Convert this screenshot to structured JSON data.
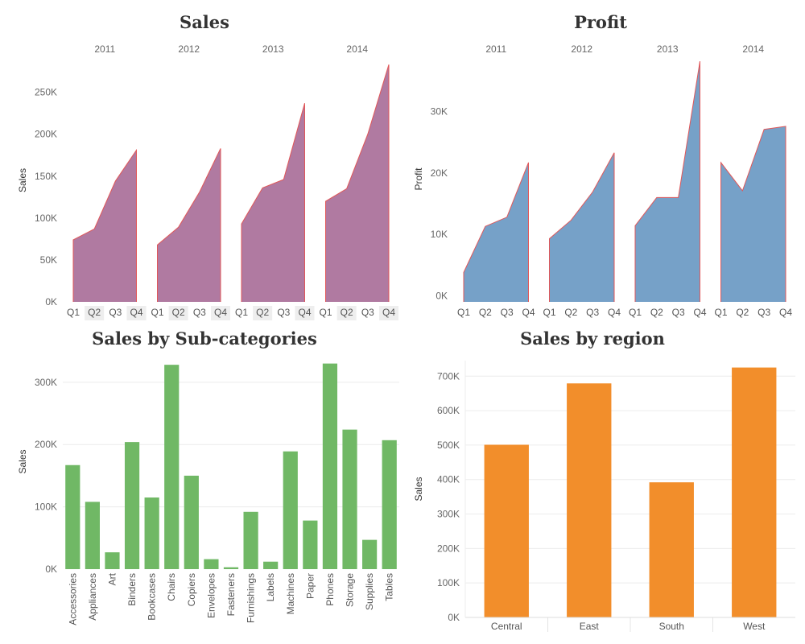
{
  "chart_data": [
    {
      "type": "area",
      "title": "Sales",
      "ylabel": "Sales",
      "years": [
        "2011",
        "2012",
        "2013",
        "2014"
      ],
      "quarters": [
        "Q1",
        "Q2",
        "Q3",
        "Q4"
      ],
      "values": [
        [
          74000,
          87000,
          144000,
          181000
        ],
        [
          68000,
          89000,
          131000,
          183000
        ],
        [
          93000,
          136000,
          146000,
          237000
        ],
        [
          120000,
          135000,
          200000,
          283000
        ]
      ],
      "ylim": [
        0,
        290000
      ],
      "yticks": [
        0,
        50000,
        100000,
        150000,
        200000,
        250000
      ],
      "ytick_labels": [
        "0K",
        "50K",
        "100K",
        "150K",
        "200K",
        "250K"
      ],
      "color": "#b07aa1",
      "stroke": "#e15759"
    },
    {
      "type": "area",
      "title": "Profit",
      "ylabel": "Profit",
      "years": [
        "2011",
        "2012",
        "2013",
        "2014"
      ],
      "quarters": [
        "Q1",
        "Q2",
        "Q3",
        "Q4"
      ],
      "values": [
        [
          3800,
          11300,
          12800,
          21700
        ],
        [
          9300,
          12300,
          16900,
          23300
        ],
        [
          11400,
          16000,
          16000,
          38200
        ],
        [
          21700,
          17100,
          27100,
          27600
        ]
      ],
      "ylim": [
        -1000,
        39000
      ],
      "yticks": [
        0,
        10000,
        20000,
        30000
      ],
      "ytick_labels": [
        "0K",
        "10K",
        "20K",
        "30K"
      ],
      "color": "#76a1c8",
      "stroke": "#e15759"
    },
    {
      "type": "bar",
      "title": "Sales by Sub-categories",
      "ylabel": "Sales",
      "categories": [
        "Accessories",
        "Appliances",
        "Art",
        "Binders",
        "Bookcases",
        "Chairs",
        "Copiers",
        "Envelopes",
        "Fasteners",
        "Furnishings",
        "Labels",
        "Machines",
        "Paper",
        "Phones",
        "Storage",
        "Supplies",
        "Tables"
      ],
      "values": [
        167000,
        108000,
        27000,
        204000,
        115000,
        328000,
        150000,
        16000,
        3000,
        92000,
        12000,
        189000,
        78000,
        330000,
        224000,
        47000,
        207000
      ],
      "ylim": [
        0,
        345000
      ],
      "yticks": [
        0,
        100000,
        200000,
        300000
      ],
      "ytick_labels": [
        "0K",
        "100K",
        "200K",
        "300K"
      ],
      "color": "#70b865"
    },
    {
      "type": "bar",
      "title": "Sales by region",
      "ylabel": "Sales",
      "categories": [
        "Central",
        "East",
        "South",
        "West"
      ],
      "values": [
        501000,
        679000,
        392000,
        725000
      ],
      "ylim": [
        0,
        745000
      ],
      "yticks": [
        0,
        100000,
        200000,
        300000,
        400000,
        500000,
        600000,
        700000
      ],
      "ytick_labels": [
        "0K",
        "100K",
        "200K",
        "300K",
        "400K",
        "500K",
        "600K",
        "700K"
      ],
      "color": "#f28e2b"
    }
  ]
}
